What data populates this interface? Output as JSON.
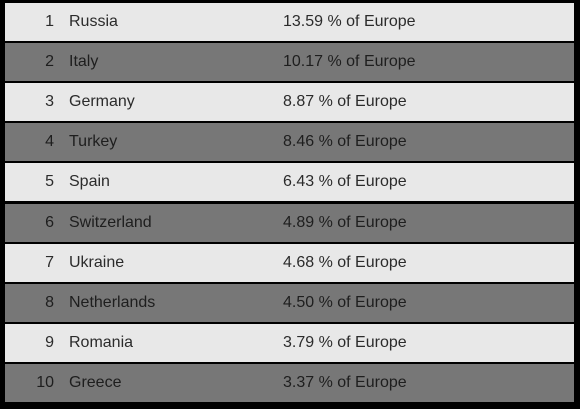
{
  "rows": [
    {
      "rank": "1",
      "country": "Russia",
      "share": "13.59 % of Europe"
    },
    {
      "rank": "2",
      "country": "Italy",
      "share": "10.17 % of Europe"
    },
    {
      "rank": "3",
      "country": "Germany",
      "share": "8.87 % of Europe"
    },
    {
      "rank": "4",
      "country": "Turkey",
      "share": "8.46 % of Europe"
    },
    {
      "rank": "5",
      "country": "Spain",
      "share": "6.43 % of Europe"
    },
    {
      "rank": "6",
      "country": "Switzerland",
      "share": "4.89 % of Europe"
    },
    {
      "rank": "7",
      "country": "Ukraine",
      "share": "4.68 % of Europe"
    },
    {
      "rank": "8",
      "country": "Netherlands",
      "share": "4.50 % of Europe"
    },
    {
      "rank": "9",
      "country": "Romania",
      "share": "3.79 % of Europe"
    },
    {
      "rank": "10",
      "country": "Greece",
      "share": "3.37 % of Europe"
    }
  ],
  "colors": {
    "row_light": "#e8e8e8",
    "row_dark": "#777777",
    "background": "#000000"
  }
}
